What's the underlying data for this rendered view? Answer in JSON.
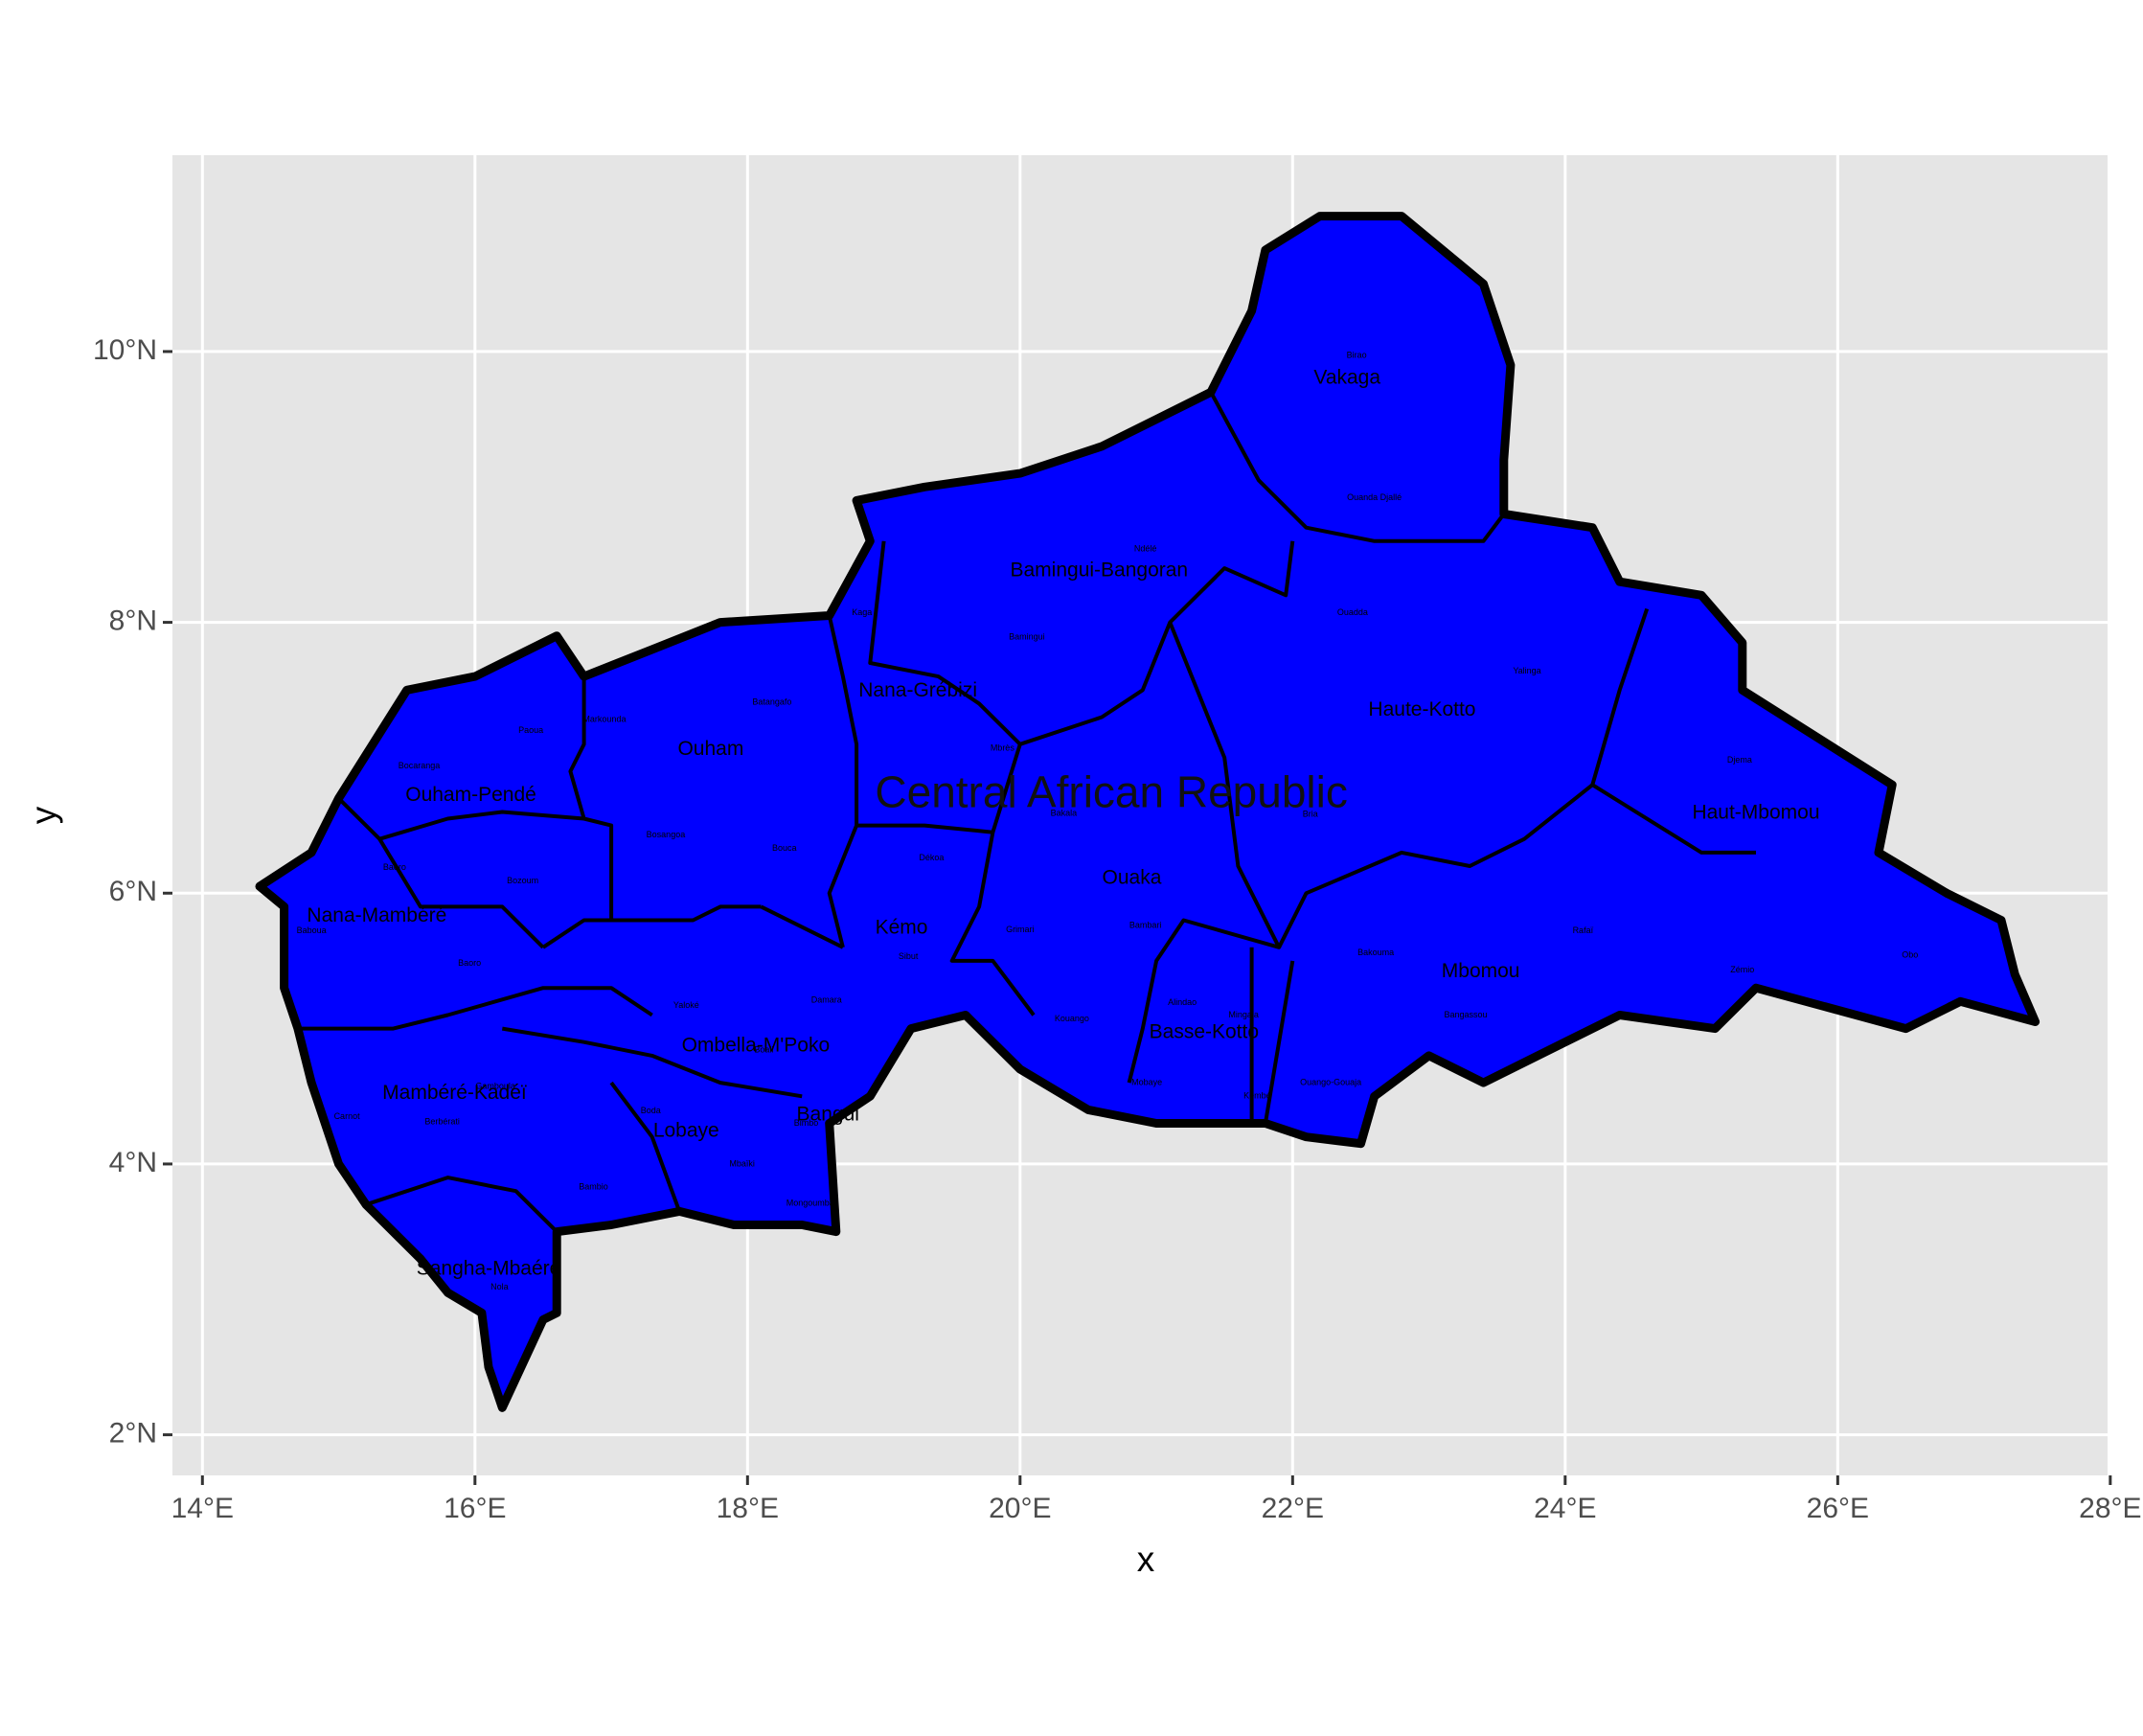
{
  "axes": {
    "x_title": "x",
    "y_title": "y",
    "x_ticks": [
      {
        "value": 14,
        "label": "14°E"
      },
      {
        "value": 16,
        "label": "16°E"
      },
      {
        "value": 18,
        "label": "18°E"
      },
      {
        "value": 20,
        "label": "20°E"
      },
      {
        "value": 22,
        "label": "22°E"
      },
      {
        "value": 24,
        "label": "24°E"
      },
      {
        "value": 26,
        "label": "26°E"
      },
      {
        "value": 28,
        "label": "28°E"
      }
    ],
    "y_ticks": [
      {
        "value": 2,
        "label": "2°N"
      },
      {
        "value": 4,
        "label": "4°N"
      },
      {
        "value": 6,
        "label": "6°N"
      },
      {
        "value": 8,
        "label": "8°N"
      },
      {
        "value": 10,
        "label": "10°N"
      }
    ],
    "xlim": [
      13.78,
      27.98
    ],
    "ylim": [
      1.7,
      11.45
    ]
  },
  "colors": {
    "panel_bg": "#e5e5e5",
    "grid": "#ffffff",
    "fill": "#0000ff",
    "outline": "#000000"
  },
  "country": {
    "name": "Central African Republic",
    "lon": 20.67,
    "lat": 6.75
  },
  "outline_lonlat": [
    [
      14.42,
      6.05
    ],
    [
      14.8,
      6.3
    ],
    [
      15.0,
      6.7
    ],
    [
      15.5,
      7.5
    ],
    [
      16.0,
      7.6
    ],
    [
      16.6,
      7.9
    ],
    [
      16.8,
      7.6
    ],
    [
      17.3,
      7.8
    ],
    [
      17.8,
      8.0
    ],
    [
      18.6,
      8.05
    ],
    [
      18.9,
      8.6
    ],
    [
      18.8,
      8.9
    ],
    [
      19.3,
      9.0
    ],
    [
      20.0,
      9.1
    ],
    [
      20.6,
      9.3
    ],
    [
      21.0,
      9.5
    ],
    [
      21.4,
      9.7
    ],
    [
      21.7,
      10.3
    ],
    [
      21.8,
      10.75
    ],
    [
      22.2,
      11.0
    ],
    [
      22.8,
      11.0
    ],
    [
      23.4,
      10.5
    ],
    [
      23.6,
      9.9
    ],
    [
      23.55,
      9.2
    ],
    [
      23.55,
      8.8
    ],
    [
      24.2,
      8.7
    ],
    [
      24.4,
      8.3
    ],
    [
      25.0,
      8.2
    ],
    [
      25.3,
      7.85
    ],
    [
      25.3,
      7.5
    ],
    [
      26.4,
      6.8
    ],
    [
      26.3,
      6.3
    ],
    [
      26.8,
      6.0
    ],
    [
      27.2,
      5.8
    ],
    [
      27.3,
      5.4
    ],
    [
      27.45,
      5.05
    ],
    [
      26.9,
      5.2
    ],
    [
      26.5,
      5.0
    ],
    [
      25.4,
      5.3
    ],
    [
      25.1,
      5.0
    ],
    [
      24.4,
      5.1
    ],
    [
      24.0,
      4.9
    ],
    [
      23.4,
      4.6
    ],
    [
      23.0,
      4.8
    ],
    [
      22.6,
      4.5
    ],
    [
      22.5,
      4.15
    ],
    [
      22.1,
      4.2
    ],
    [
      21.8,
      4.3
    ],
    [
      21.0,
      4.3
    ],
    [
      20.5,
      4.4
    ],
    [
      20.0,
      4.7
    ],
    [
      19.6,
      5.1
    ],
    [
      19.2,
      5.0
    ],
    [
      18.9,
      4.5
    ],
    [
      18.6,
      4.3
    ],
    [
      18.65,
      3.5
    ],
    [
      18.4,
      3.55
    ],
    [
      17.9,
      3.55
    ],
    [
      17.5,
      3.65
    ],
    [
      17.0,
      3.55
    ],
    [
      16.6,
      3.5
    ],
    [
      16.6,
      2.9
    ],
    [
      16.5,
      2.85
    ],
    [
      16.2,
      2.2
    ],
    [
      16.1,
      2.5
    ],
    [
      16.05,
      2.9
    ],
    [
      15.8,
      3.05
    ],
    [
      15.6,
      3.3
    ],
    [
      15.2,
      3.7
    ],
    [
      15.0,
      4.0
    ],
    [
      14.8,
      4.6
    ],
    [
      14.7,
      5.0
    ],
    [
      14.6,
      5.3
    ],
    [
      14.6,
      5.9
    ],
    [
      14.42,
      6.05
    ]
  ],
  "borders_lonlat": [
    [
      [
        15.0,
        6.7
      ],
      [
        15.3,
        6.4
      ],
      [
        15.8,
        6.55
      ],
      [
        16.2,
        6.6
      ],
      [
        16.8,
        6.55
      ]
    ],
    [
      [
        15.3,
        6.4
      ],
      [
        15.6,
        5.9
      ],
      [
        16.2,
        5.9
      ],
      [
        16.5,
        5.6
      ]
    ],
    [
      [
        14.7,
        5.0
      ],
      [
        15.4,
        5.0
      ],
      [
        15.8,
        5.1
      ],
      [
        16.5,
        5.3
      ],
      [
        17.0,
        5.3
      ],
      [
        17.3,
        5.1
      ]
    ],
    [
      [
        16.5,
        5.6
      ],
      [
        16.8,
        5.8
      ],
      [
        17.0,
        5.8
      ],
      [
        17.6,
        5.8
      ],
      [
        17.8,
        5.9
      ],
      [
        18.1,
        5.9
      ]
    ],
    [
      [
        16.8,
        7.6
      ],
      [
        16.8,
        7.1
      ],
      [
        16.7,
        6.9
      ],
      [
        16.8,
        6.55
      ],
      [
        17.0,
        6.5
      ],
      [
        17.0,
        6.0
      ],
      [
        17.0,
        5.8
      ]
    ],
    [
      [
        18.6,
        8.05
      ],
      [
        18.7,
        7.6
      ],
      [
        18.8,
        7.1
      ],
      [
        18.8,
        6.5
      ],
      [
        18.6,
        6.0
      ],
      [
        18.7,
        5.6
      ]
    ],
    [
      [
        18.1,
        5.9
      ],
      [
        18.7,
        5.6
      ]
    ],
    [
      [
        18.8,
        6.5
      ],
      [
        19.3,
        6.5
      ],
      [
        19.8,
        6.45
      ]
    ],
    [
      [
        19.0,
        8.6
      ],
      [
        18.9,
        7.7
      ],
      [
        19.4,
        7.6
      ],
      [
        19.7,
        7.4
      ],
      [
        20.0,
        7.1
      ]
    ],
    [
      [
        20.0,
        7.1
      ],
      [
        20.6,
        7.3
      ],
      [
        20.9,
        7.5
      ],
      [
        21.1,
        8.0
      ],
      [
        21.5,
        8.4
      ],
      [
        21.95,
        8.2
      ],
      [
        22.0,
        8.6
      ]
    ],
    [
      [
        21.4,
        9.7
      ],
      [
        21.75,
        9.05
      ],
      [
        22.1,
        8.7
      ],
      [
        22.6,
        8.6
      ],
      [
        23.4,
        8.6
      ],
      [
        23.55,
        8.8
      ]
    ],
    [
      [
        19.8,
        6.45
      ],
      [
        20.0,
        7.1
      ]
    ],
    [
      [
        19.8,
        6.45
      ],
      [
        19.7,
        5.9
      ],
      [
        19.5,
        5.5
      ],
      [
        19.8,
        5.5
      ],
      [
        20.1,
        5.1
      ]
    ],
    [
      [
        21.1,
        8.0
      ],
      [
        21.5,
        7.0
      ],
      [
        21.6,
        6.2
      ],
      [
        21.9,
        5.6
      ],
      [
        21.2,
        5.8
      ],
      [
        21.0,
        5.5
      ],
      [
        20.9,
        5.0
      ],
      [
        20.8,
        4.6
      ]
    ],
    [
      [
        21.9,
        5.6
      ],
      [
        22.1,
        6.0
      ],
      [
        22.8,
        6.3
      ],
      [
        23.3,
        6.2
      ],
      [
        23.7,
        6.4
      ],
      [
        24.2,
        6.8
      ]
    ],
    [
      [
        24.2,
        6.8
      ],
      [
        24.4,
        7.5
      ],
      [
        24.6,
        8.1
      ]
    ],
    [
      [
        24.2,
        6.8
      ],
      [
        25.0,
        6.3
      ],
      [
        25.4,
        6.3
      ]
    ],
    [
      [
        21.7,
        5.6
      ],
      [
        21.7,
        4.6
      ],
      [
        21.7,
        4.3
      ]
    ],
    [
      [
        22.0,
        5.5
      ],
      [
        21.8,
        4.3
      ]
    ],
    [
      [
        16.2,
        5.0
      ],
      [
        16.8,
        4.9
      ],
      [
        17.3,
        4.8
      ],
      [
        17.8,
        4.6
      ],
      [
        18.4,
        4.5
      ]
    ],
    [
      [
        17.0,
        4.6
      ],
      [
        17.3,
        4.2
      ],
      [
        17.5,
        3.65
      ]
    ],
    [
      [
        15.2,
        3.7
      ],
      [
        15.8,
        3.9
      ],
      [
        16.3,
        3.8
      ],
      [
        16.6,
        3.5
      ]
    ]
  ],
  "regions": [
    {
      "name": "Vakaga",
      "lon": 22.4,
      "lat": 9.8
    },
    {
      "name": "Bamingui-Bangoran",
      "lon": 20.58,
      "lat": 8.38
    },
    {
      "name": "Haute-Kotto",
      "lon": 22.95,
      "lat": 7.35
    },
    {
      "name": "Haut-Mbomou",
      "lon": 25.4,
      "lat": 6.59
    },
    {
      "name": "Nana-Grébizi",
      "lon": 19.25,
      "lat": 7.49
    },
    {
      "name": "Ouham",
      "lon": 17.73,
      "lat": 7.06
    },
    {
      "name": "Ouham-Pendé",
      "lon": 15.97,
      "lat": 6.72
    },
    {
      "name": "Nana-Mambéré",
      "lon": 15.28,
      "lat": 5.83
    },
    {
      "name": "Ouaka",
      "lon": 20.82,
      "lat": 6.11
    },
    {
      "name": "Kémo",
      "lon": 19.13,
      "lat": 5.74
    },
    {
      "name": "Mbomou",
      "lon": 23.38,
      "lat": 5.42
    },
    {
      "name": "Basse-Kotto",
      "lon": 21.35,
      "lat": 4.97
    },
    {
      "name": "Ombella-M'Poko",
      "lon": 18.06,
      "lat": 4.87
    },
    {
      "name": "Mambéré-Kadéï",
      "lon": 15.85,
      "lat": 4.52
    },
    {
      "name": "Bangui",
      "lon": 18.59,
      "lat": 4.36
    },
    {
      "name": "Lobaye",
      "lon": 17.55,
      "lat": 4.24
    },
    {
      "name": "Sangha-Mbaéré",
      "lon": 16.1,
      "lat": 3.22
    }
  ],
  "districts": [
    {
      "name": "Birao",
      "lon": 22.47,
      "lat": 9.97
    },
    {
      "name": "Ouanda Djallé",
      "lon": 22.6,
      "lat": 8.92
    },
    {
      "name": "Ndélé",
      "lon": 20.92,
      "lat": 8.54
    },
    {
      "name": "Bamingui",
      "lon": 20.05,
      "lat": 7.89
    },
    {
      "name": "Ouadda",
      "lon": 22.44,
      "lat": 8.07
    },
    {
      "name": "Yalinga",
      "lon": 23.72,
      "lat": 7.64
    },
    {
      "name": "Kaga",
      "lon": 18.84,
      "lat": 8.07
    },
    {
      "name": "Batangafo",
      "lon": 18.18,
      "lat": 7.41
    },
    {
      "name": "Markounda",
      "lon": 16.95,
      "lat": 7.28
    },
    {
      "name": "Paoua",
      "lon": 16.41,
      "lat": 7.2
    },
    {
      "name": "Bocaranga",
      "lon": 15.59,
      "lat": 6.94
    },
    {
      "name": "Mbrès",
      "lon": 19.87,
      "lat": 7.07
    },
    {
      "name": "Djema",
      "lon": 25.28,
      "lat": 6.98
    },
    {
      "name": "Bosangoa",
      "lon": 17.4,
      "lat": 6.43
    },
    {
      "name": "Bouca",
      "lon": 18.27,
      "lat": 6.33
    },
    {
      "name": "Bakala",
      "lon": 20.32,
      "lat": 6.59
    },
    {
      "name": "Bria",
      "lon": 22.13,
      "lat": 6.58
    },
    {
      "name": "Bozoum",
      "lon": 16.35,
      "lat": 6.09
    },
    {
      "name": "Baoro",
      "lon": 15.41,
      "lat": 6.19
    },
    {
      "name": "Dékoa",
      "lon": 19.35,
      "lat": 6.26
    },
    {
      "name": "Baboua",
      "lon": 14.8,
      "lat": 5.72
    },
    {
      "name": "Baoro",
      "lon": 15.96,
      "lat": 5.48
    },
    {
      "name": "Sibut",
      "lon": 19.18,
      "lat": 5.53
    },
    {
      "name": "Grimari",
      "lon": 20.0,
      "lat": 5.73
    },
    {
      "name": "Bambari",
      "lon": 20.92,
      "lat": 5.76
    },
    {
      "name": "Rafaï",
      "lon": 24.13,
      "lat": 5.72
    },
    {
      "name": "Bakouma",
      "lon": 22.61,
      "lat": 5.56
    },
    {
      "name": "Zémio",
      "lon": 25.3,
      "lat": 5.43
    },
    {
      "name": "Obo",
      "lon": 26.53,
      "lat": 5.54
    },
    {
      "name": "Damara",
      "lon": 18.58,
      "lat": 5.21
    },
    {
      "name": "Yaloké",
      "lon": 17.55,
      "lat": 5.17
    },
    {
      "name": "Alindao",
      "lon": 21.19,
      "lat": 5.19
    },
    {
      "name": "Mingala",
      "lon": 21.64,
      "lat": 5.1
    },
    {
      "name": "Bangassou",
      "lon": 23.27,
      "lat": 5.1
    },
    {
      "name": "Kouango",
      "lon": 20.38,
      "lat": 5.07
    },
    {
      "name": "Boali",
      "lon": 18.12,
      "lat": 4.84
    },
    {
      "name": "Gamboula",
      "lon": 16.15,
      "lat": 4.57
    },
    {
      "name": "Mobaye",
      "lon": 20.93,
      "lat": 4.6
    },
    {
      "name": "Ouango-Gouaja",
      "lon": 22.28,
      "lat": 4.6
    },
    {
      "name": "Kembé",
      "lon": 21.74,
      "lat": 4.5
    },
    {
      "name": "Boda",
      "lon": 17.29,
      "lat": 4.39
    },
    {
      "name": "Carnot",
      "lon": 15.06,
      "lat": 4.35
    },
    {
      "name": "Berbérati",
      "lon": 15.76,
      "lat": 4.31
    },
    {
      "name": "Bimbo",
      "lon": 18.43,
      "lat": 4.3
    },
    {
      "name": "Mbaïki",
      "lon": 17.96,
      "lat": 4.0
    },
    {
      "name": "Mongoumba",
      "lon": 18.46,
      "lat": 3.71
    },
    {
      "name": "Bambio",
      "lon": 16.87,
      "lat": 3.83
    },
    {
      "name": "Nola",
      "lon": 16.18,
      "lat": 3.09
    }
  ]
}
